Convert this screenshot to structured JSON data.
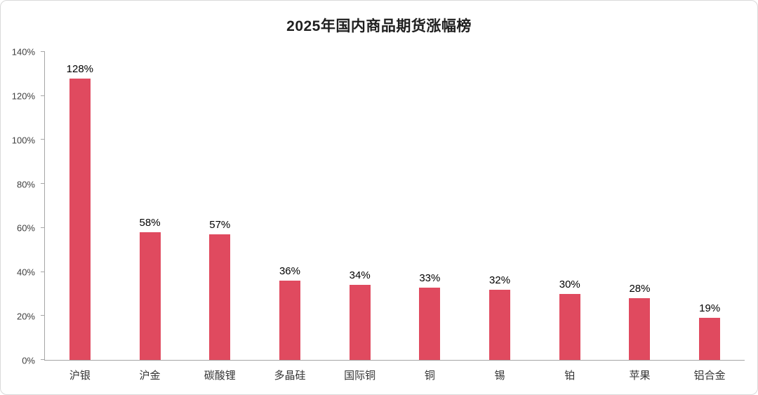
{
  "page": {
    "background": "#ffffff",
    "border_color": "#d9d9d9"
  },
  "chart_data": {
    "type": "bar",
    "title": "2025年国内商品期货涨幅榜",
    "categories": [
      "沪银",
      "沪金",
      "碳酸锂",
      "多晶硅",
      "国际铜",
      "铜",
      "锡",
      "铂",
      "苹果",
      "铝合金"
    ],
    "values": [
      128,
      58,
      57,
      36,
      34,
      33,
      32,
      30,
      28,
      19
    ],
    "value_labels": [
      "128%",
      "58%",
      "57%",
      "36%",
      "34%",
      "33%",
      "32%",
      "30%",
      "28%",
      "19%"
    ],
    "xlabel": "",
    "ylabel": "",
    "ylim": [
      0,
      140
    ],
    "y_ticks": [
      0,
      20,
      40,
      60,
      80,
      100,
      120,
      140
    ],
    "y_tick_labels": [
      "0%",
      "20%",
      "40%",
      "60%",
      "80%",
      "100%",
      "120%",
      "140%"
    ],
    "grid": false,
    "legend": "none",
    "bar_color": "#e04a5f",
    "value_label_color": "#000000",
    "axis_color": "#a6a6a6",
    "tick_text_color": "#404040",
    "category_text_color": "#333333"
  }
}
